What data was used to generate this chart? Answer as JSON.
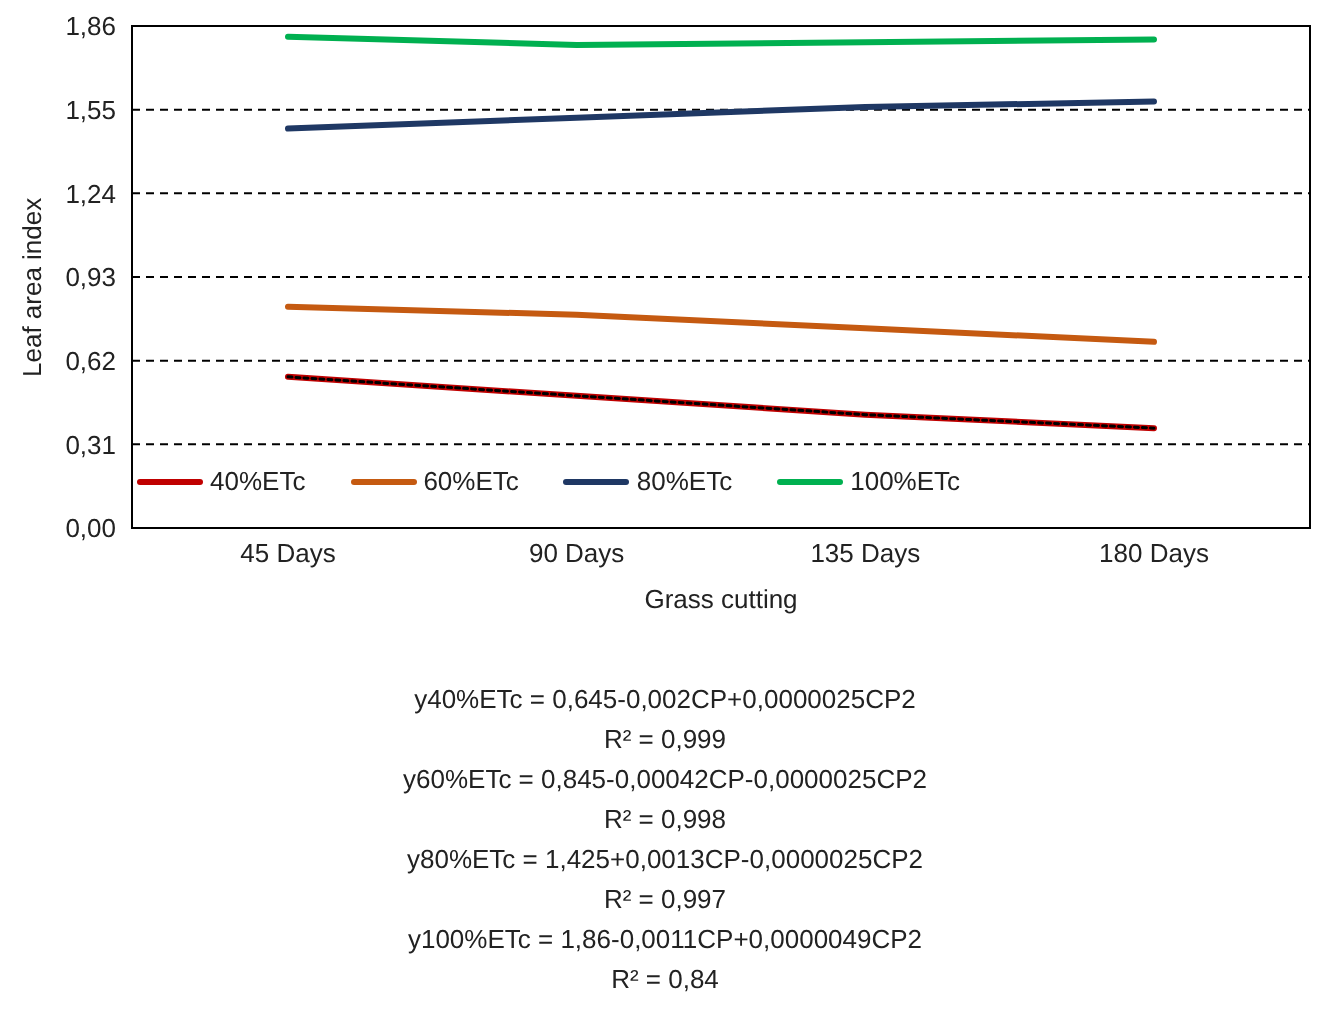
{
  "chart_data": {
    "type": "line",
    "xlabel": "Grass cutting",
    "ylabel": "Leaf area index",
    "categories": [
      "45 Days",
      "90 Days",
      "135 Days",
      "180 Days"
    ],
    "series": [
      {
        "name": "40%ETc",
        "color": "#c00000",
        "values": [
          0.56,
          0.49,
          0.42,
          0.37
        ]
      },
      {
        "type": "line",
        "color": "#000000",
        "line_style": "dotted",
        "values": [
          0.56,
          0.49,
          0.42,
          0.37
        ]
      },
      {
        "name": "60%ETc",
        "color": "#c55a11",
        "values": [
          0.82,
          0.79,
          0.74,
          0.69
        ]
      },
      {
        "name": "80%ETc",
        "color": "#1f3864",
        "values": [
          1.48,
          1.52,
          1.56,
          1.58
        ]
      },
      {
        "name": "100%ETc",
        "color": "#00b050",
        "values": [
          1.82,
          1.79,
          1.8,
          1.81
        ]
      }
    ],
    "ylim": [
      0,
      1.86
    ],
    "yticks": [
      {
        "value": 0,
        "label": "0,00"
      },
      {
        "value": 0.31,
        "label": "0,31"
      },
      {
        "value": 0.62,
        "label": "0,62"
      },
      {
        "value": 0.93,
        "label": "0,93"
      },
      {
        "value": 1.24,
        "label": "1,24"
      },
      {
        "value": 1.55,
        "label": "1,55"
      },
      {
        "value": 1.86,
        "label": "1,86"
      }
    ],
    "grid": "y",
    "legend": "bottom left",
    "marker": "none",
    "line_style": "solid",
    "annotations": [
      "y40%ETc = 0,645-0,002CP+0,0000025CP2",
      "R² = 0,999",
      "y60%ETc = 0,845-0,00042CP-0,0000025CP2",
      "R² = 0,998",
      "y80%ETc = 1,425+0,0013CP-0,0000025CP2",
      "R² = 0,997",
      "y100%ETc = 1,86-0,0011CP+0,0000049CP2",
      "R² = 0,84"
    ]
  }
}
